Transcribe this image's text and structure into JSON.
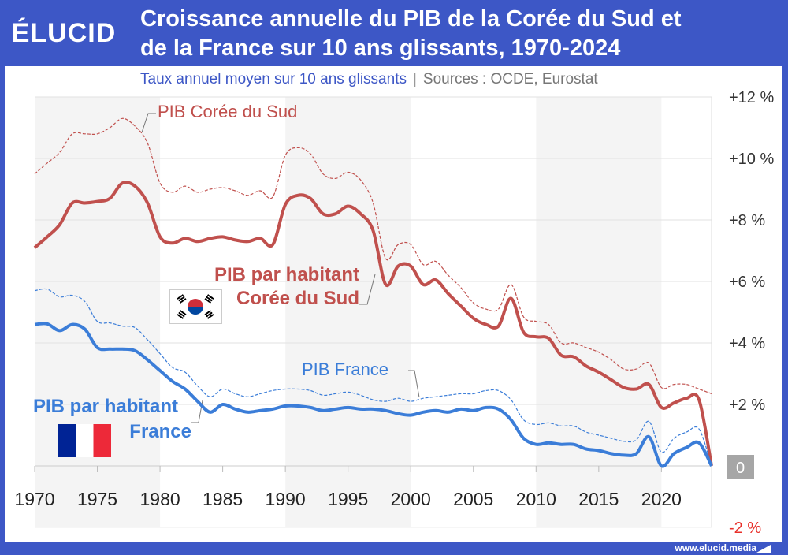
{
  "header": {
    "logo": "ÉLUCID",
    "title_line1": "Croissance annuelle du PIB de la Corée du Sud et",
    "title_line2": "de la France sur 10 ans glissants, 1970-2024",
    "subtitle": "Taux annuel moyen sur 10 ans glissants",
    "separator": "|",
    "sources": "Sources : OCDE, Eurostat"
  },
  "footer": "www.elucid.media",
  "labels": {
    "korea_gdp": "PIB Corée du Sud",
    "korea_pc_1": "PIB par habitant",
    "korea_pc_2": "Corée du Sud",
    "france_gdp": "PIB France",
    "france_pc_1": "PIB par habitant",
    "france_pc_2": "France"
  },
  "chart_data": {
    "type": "line",
    "title": "Croissance annuelle du PIB de la Corée du Sud et de la France sur 10 ans glissants, 1970-2024",
    "xlim": [
      1970,
      2024
    ],
    "ylim": [
      -2,
      12
    ],
    "grid": true,
    "x_ticks": [
      "1970",
      "1975",
      "1980",
      "1985",
      "1990",
      "1995",
      "2000",
      "2005",
      "2010",
      "2015",
      "2020"
    ],
    "y_ticks": [
      {
        "v": 12,
        "label": "+12 %"
      },
      {
        "v": 10,
        "label": "+10 %"
      },
      {
        "v": 8,
        "label": "+8 %"
      },
      {
        "v": 6,
        "label": "+6 %"
      },
      {
        "v": 4,
        "label": "+4 %"
      },
      {
        "v": 2,
        "label": "+2 %"
      },
      {
        "v": 0,
        "label": "0"
      },
      {
        "v": -2,
        "label": "-2 %"
      }
    ],
    "x": [
      1970,
      1971,
      1972,
      1973,
      1974,
      1975,
      1976,
      1977,
      1978,
      1979,
      1980,
      1981,
      1982,
      1983,
      1984,
      1985,
      1986,
      1987,
      1988,
      1989,
      1990,
      1991,
      1992,
      1993,
      1994,
      1995,
      1996,
      1997,
      1998,
      1999,
      2000,
      2001,
      2002,
      2003,
      2004,
      2005,
      2006,
      2007,
      2008,
      2009,
      2010,
      2011,
      2012,
      2013,
      2014,
      2015,
      2016,
      2017,
      2018,
      2019,
      2020,
      2021,
      2022,
      2023,
      2024
    ],
    "series": [
      {
        "name": "PIB Corée du Sud",
        "color": "#c0504d",
        "style": "dashed",
        "values": [
          9.5,
          9.85,
          10.2,
          10.8,
          10.8,
          10.8,
          11.0,
          11.3,
          11.05,
          10.5,
          9.2,
          8.9,
          9.1,
          8.9,
          9.0,
          9.05,
          8.95,
          8.8,
          8.95,
          8.75,
          10.1,
          10.35,
          10.15,
          9.5,
          9.35,
          9.55,
          9.3,
          8.55,
          6.75,
          7.2,
          7.2,
          6.55,
          6.65,
          6.2,
          5.8,
          5.3,
          5.1,
          5.1,
          5.9,
          4.85,
          4.7,
          4.6,
          4.0,
          4.0,
          3.85,
          3.7,
          3.45,
          3.15,
          3.15,
          3.35,
          2.55,
          2.65,
          2.65,
          2.5,
          2.35
        ]
      },
      {
        "name": "PIB par habitant Corée du Sud",
        "color": "#c0504d",
        "style": "solid",
        "values": [
          7.1,
          7.45,
          7.85,
          8.55,
          8.55,
          8.6,
          8.7,
          9.2,
          9.1,
          8.55,
          7.45,
          7.25,
          7.4,
          7.3,
          7.4,
          7.45,
          7.35,
          7.3,
          7.4,
          7.2,
          8.5,
          8.8,
          8.7,
          8.2,
          8.2,
          8.45,
          8.2,
          7.65,
          5.9,
          6.5,
          6.5,
          5.9,
          6.05,
          5.6,
          5.2,
          4.8,
          4.6,
          4.55,
          5.45,
          4.35,
          4.2,
          4.15,
          3.6,
          3.55,
          3.25,
          3.05,
          2.8,
          2.55,
          2.5,
          2.65,
          1.9,
          2.05,
          2.2,
          2.15,
          0.0
        ]
      },
      {
        "name": "PIB France",
        "color": "#3b7dd8",
        "style": "dashed",
        "values": [
          5.7,
          5.75,
          5.5,
          5.55,
          5.35,
          4.7,
          4.65,
          4.55,
          4.5,
          4.1,
          3.65,
          3.2,
          3.05,
          2.6,
          2.25,
          2.5,
          2.35,
          2.25,
          2.35,
          2.45,
          2.5,
          2.5,
          2.45,
          2.3,
          2.35,
          2.4,
          2.3,
          2.15,
          2.1,
          2.2,
          2.1,
          2.2,
          2.25,
          2.3,
          2.35,
          2.35,
          2.45,
          2.45,
          2.15,
          1.5,
          1.35,
          1.4,
          1.3,
          1.3,
          1.1,
          1.0,
          0.9,
          0.8,
          0.85,
          1.45,
          0.45,
          0.9,
          1.1,
          1.2,
          0.0
        ]
      },
      {
        "name": "PIB par habitant France",
        "color": "#3b7dd8",
        "style": "solid",
        "values": [
          4.6,
          4.62,
          4.4,
          4.6,
          4.45,
          3.85,
          3.8,
          3.8,
          3.75,
          3.45,
          3.1,
          2.75,
          2.5,
          2.1,
          1.75,
          2.0,
          1.85,
          1.75,
          1.8,
          1.85,
          1.95,
          1.95,
          1.9,
          1.8,
          1.85,
          1.9,
          1.85,
          1.85,
          1.8,
          1.7,
          1.65,
          1.75,
          1.8,
          1.75,
          1.85,
          1.8,
          1.9,
          1.85,
          1.5,
          0.9,
          0.7,
          0.75,
          0.7,
          0.7,
          0.55,
          0.5,
          0.4,
          0.35,
          0.4,
          0.95,
          0.0,
          0.4,
          0.6,
          0.75,
          0.0
        ]
      }
    ]
  }
}
